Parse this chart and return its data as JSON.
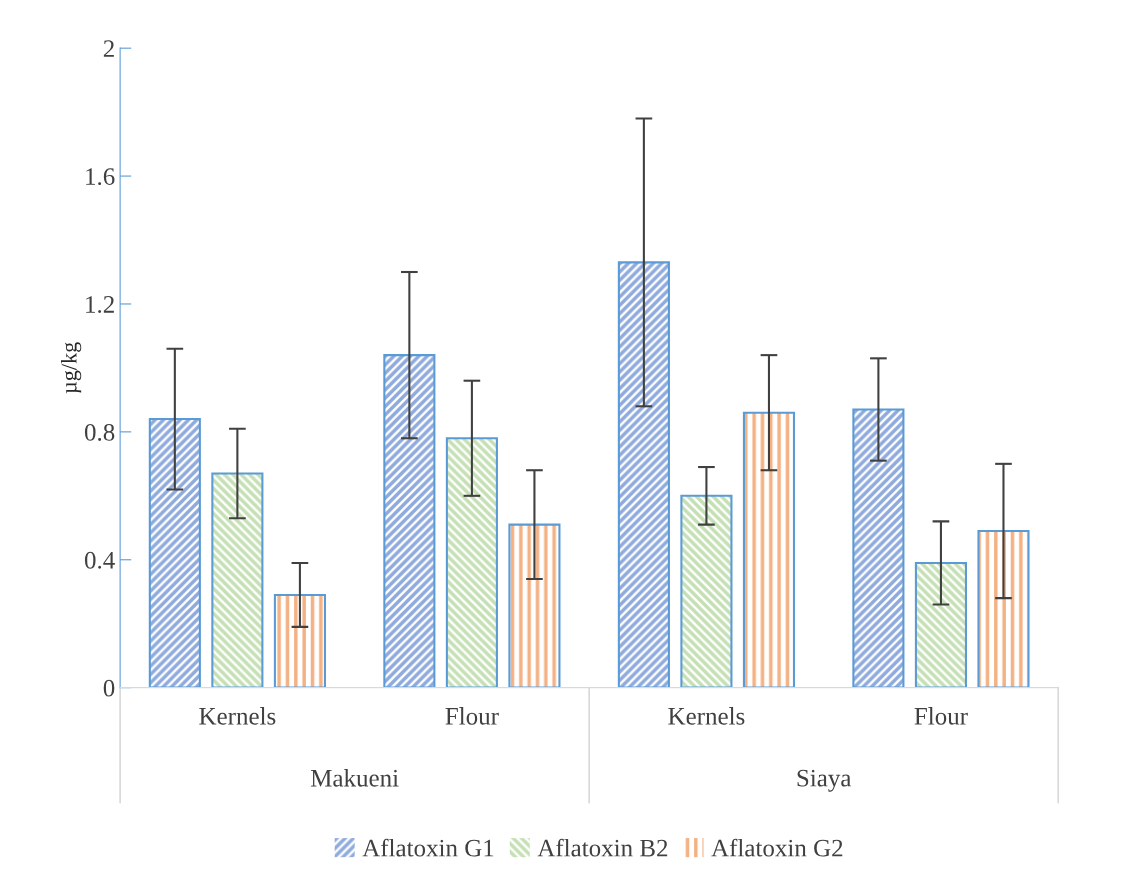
{
  "chart_data": {
    "type": "bar",
    "ylabel": "µg/kg",
    "categories": [
      "Kernels",
      "Flour",
      "Kernels",
      "Flour"
    ],
    "annotations": [
      "Makueni",
      "Siaya"
    ],
    "series": [
      {
        "name": "Aflatoxin G1",
        "color": "#8faadc",
        "values": [
          0.84,
          1.04,
          1.33,
          0.87
        ],
        "errors": [
          0.22,
          0.26,
          0.45,
          0.16
        ]
      },
      {
        "name": "Aflatoxin B2",
        "color": "#c5e0b4",
        "values": [
          0.67,
          0.78,
          0.6,
          0.39
        ],
        "errors": [
          0.14,
          0.18,
          0.09,
          0.13
        ]
      },
      {
        "name": "Aflatoxin G2",
        "color": "#f4b183",
        "values": [
          0.29,
          0.51,
          0.86,
          0.49
        ],
        "errors": [
          0.1,
          0.17,
          0.18,
          0.21
        ]
      }
    ],
    "ylim": [
      0,
      2
    ],
    "yticks": [
      0,
      0.4,
      0.8,
      1.2,
      1.6,
      2
    ],
    "grid": false,
    "legend": "bottom"
  }
}
